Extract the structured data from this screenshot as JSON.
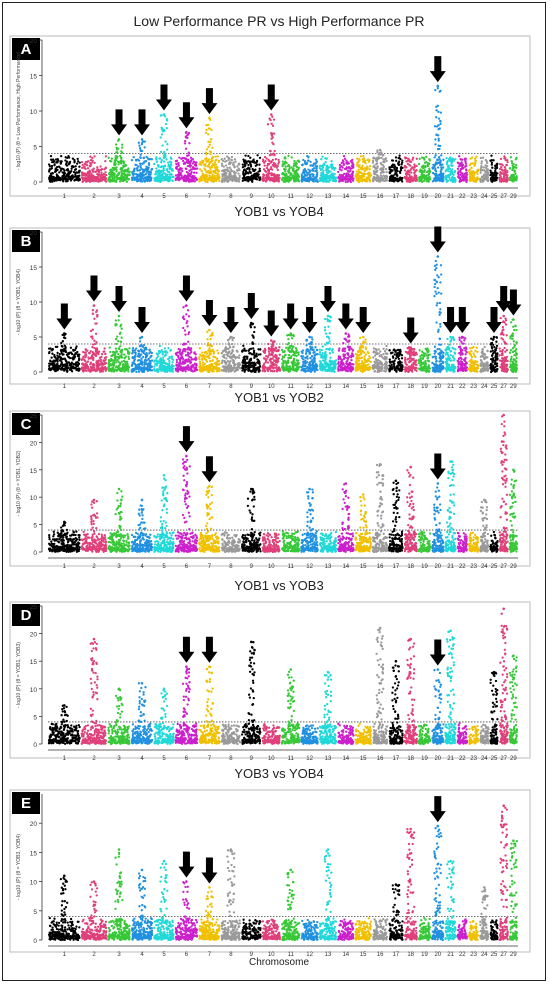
{
  "figure": {
    "x_axis_label": "Chromosome",
    "colors": [
      "#000000",
      "#e0407a",
      "#37c837",
      "#2090e0",
      "#20d8d8",
      "#cc20cc",
      "#f0c000",
      "#9a9a9a"
    ],
    "arrow_color": "#000000",
    "threshold_style": "dotted"
  },
  "chart_data": [
    {
      "type": "scatter",
      "subtype": "manhattan",
      "panel_letter": "A",
      "title": "Low Performance PR vs High Performance PR",
      "ylabel": "- log10 (P) (θ = Low Performance, High Performance)",
      "ylim": [
        0,
        20
      ],
      "yticks": [
        0,
        5,
        10,
        15,
        20
      ],
      "threshold": 4,
      "x_tick_labels": [
        "1",
        "2",
        "3",
        "4",
        "5",
        "6",
        "7",
        "8",
        "9",
        "10",
        "11",
        "12",
        "13",
        "14",
        "15",
        "16",
        "17",
        "18",
        "19",
        "20",
        "21",
        "22",
        "23",
        "24",
        "25",
        "27",
        "29"
      ],
      "peaks": [
        {
          "chromosome": "3",
          "value": 6
        },
        {
          "chromosome": "4",
          "value": 6
        },
        {
          "chromosome": "5",
          "value": 9.5
        },
        {
          "chromosome": "6",
          "value": 7
        },
        {
          "chromosome": "7",
          "value": 9
        },
        {
          "chromosome": "10",
          "value": 9.5
        },
        {
          "chromosome": "16",
          "value": 4.5
        },
        {
          "chromosome": "20",
          "value": 13.5
        }
      ],
      "arrows": [
        "3",
        "4",
        "5",
        "6",
        "7",
        "10",
        "20"
      ],
      "grid": false
    },
    {
      "type": "scatter",
      "subtype": "manhattan",
      "panel_letter": "B",
      "title": "YOB1 vs YOB4",
      "ylabel": "- log10 (P) (θ = YOB1, YOB4)",
      "ylim": [
        0,
        20
      ],
      "yticks": [
        0,
        5,
        10,
        15,
        20
      ],
      "threshold": 4,
      "x_tick_labels": [
        "1",
        "2",
        "3",
        "4",
        "5",
        "6",
        "7",
        "8",
        "9",
        "10",
        "11",
        "12",
        "13",
        "14",
        "15",
        "16",
        "17",
        "18",
        "19",
        "20",
        "21",
        "22",
        "23",
        "24",
        "25",
        "27",
        "29"
      ],
      "peaks": [
        {
          "chromosome": "1",
          "value": 5.5
        },
        {
          "chromosome": "2",
          "value": 9.5
        },
        {
          "chromosome": "3",
          "value": 8
        },
        {
          "chromosome": "4",
          "value": 5
        },
        {
          "chromosome": "6",
          "value": 9.5
        },
        {
          "chromosome": "7",
          "value": 6
        },
        {
          "chromosome": "8",
          "value": 5
        },
        {
          "chromosome": "9",
          "value": 7
        },
        {
          "chromosome": "10",
          "value": 4.5
        },
        {
          "chromosome": "11",
          "value": 5.5
        },
        {
          "chromosome": "12",
          "value": 5
        },
        {
          "chromosome": "13",
          "value": 8
        },
        {
          "chromosome": "14",
          "value": 5.5
        },
        {
          "chromosome": "15",
          "value": 5
        },
        {
          "chromosome": "18",
          "value": 3.5
        },
        {
          "chromosome": "20",
          "value": 16.5
        },
        {
          "chromosome": "21",
          "value": 5
        },
        {
          "chromosome": "22",
          "value": 5
        },
        {
          "chromosome": "25",
          "value": 5
        },
        {
          "chromosome": "27",
          "value": 8
        },
        {
          "chromosome": "29",
          "value": 7.5
        }
      ],
      "arrows": [
        "1",
        "2",
        "3",
        "4",
        "6",
        "7",
        "8",
        "9",
        "10",
        "11",
        "12",
        "13",
        "14",
        "15",
        "18",
        "20",
        "21",
        "22",
        "25",
        "27",
        "29"
      ],
      "grid": false
    },
    {
      "type": "scatter",
      "subtype": "manhattan",
      "panel_letter": "C",
      "title": "YOB1 vs YOB2",
      "ylabel": "- log10 (P) (θ = YOB1, YOB2)",
      "ylim": [
        0,
        25
      ],
      "yticks": [
        0,
        5,
        10,
        15,
        20,
        25
      ],
      "threshold": 4,
      "x_tick_labels": [
        "1",
        "2",
        "3",
        "4",
        "5",
        "6",
        "7",
        "8",
        "9",
        "10",
        "11",
        "12",
        "13",
        "14",
        "15",
        "16",
        "17",
        "18",
        "19",
        "20",
        "21",
        "22",
        "23",
        "24",
        "25",
        "27",
        "29"
      ],
      "peaks": [
        {
          "chromosome": "1",
          "value": 5.5
        },
        {
          "chromosome": "2",
          "value": 9.5
        },
        {
          "chromosome": "3",
          "value": 11.5
        },
        {
          "chromosome": "4",
          "value": 9.5
        },
        {
          "chromosome": "5",
          "value": 14
        },
        {
          "chromosome": "6",
          "value": 17.5
        },
        {
          "chromosome": "7",
          "value": 12
        },
        {
          "chromosome": "9",
          "value": 11.5
        },
        {
          "chromosome": "12",
          "value": 11.5
        },
        {
          "chromosome": "14",
          "value": 12.5
        },
        {
          "chromosome": "15",
          "value": 10.5
        },
        {
          "chromosome": "16",
          "value": 16
        },
        {
          "chromosome": "17",
          "value": 13
        },
        {
          "chromosome": "18",
          "value": 15.5
        },
        {
          "chromosome": "20",
          "value": 12.5
        },
        {
          "chromosome": "21",
          "value": 16.5
        },
        {
          "chromosome": "24",
          "value": 9.5
        },
        {
          "chromosome": "27",
          "value": 25
        },
        {
          "chromosome": "29",
          "value": 15
        }
      ],
      "arrows": [
        "6",
        "7",
        "20"
      ],
      "grid": false
    },
    {
      "type": "scatter",
      "subtype": "manhattan",
      "panel_letter": "D",
      "title": "YOB1 vs YOB3",
      "ylabel": "- log10 (P) (θ = YOB1, YOB3)",
      "ylim": [
        0,
        25
      ],
      "yticks": [
        0,
        5,
        10,
        15,
        20,
        25
      ],
      "threshold": 4,
      "x_tick_labels": [
        "1",
        "2",
        "3",
        "4",
        "5",
        "6",
        "7",
        "8",
        "9",
        "10",
        "11",
        "12",
        "13",
        "14",
        "15",
        "16",
        "17",
        "18",
        "19",
        "20",
        "21",
        "22",
        "23",
        "24",
        "25",
        "27",
        "29"
      ],
      "peaks": [
        {
          "chromosome": "1",
          "value": 7
        },
        {
          "chromosome": "2",
          "value": 19
        },
        {
          "chromosome": "3",
          "value": 10
        },
        {
          "chromosome": "4",
          "value": 11
        },
        {
          "chromosome": "5",
          "value": 10
        },
        {
          "chromosome": "6",
          "value": 14
        },
        {
          "chromosome": "7",
          "value": 14
        },
        {
          "chromosome": "9",
          "value": 18.5
        },
        {
          "chromosome": "11",
          "value": 13.5
        },
        {
          "chromosome": "13",
          "value": 13
        },
        {
          "chromosome": "16",
          "value": 21
        },
        {
          "chromosome": "17",
          "value": 15
        },
        {
          "chromosome": "18",
          "value": 19
        },
        {
          "chromosome": "20",
          "value": 13.5
        },
        {
          "chromosome": "21",
          "value": 20.5
        },
        {
          "chromosome": "25",
          "value": 13
        },
        {
          "chromosome": "27",
          "value": 24.5
        },
        {
          "chromosome": "29",
          "value": 16
        }
      ],
      "arrows": [
        "6",
        "7",
        "20"
      ],
      "grid": false
    },
    {
      "type": "scatter",
      "subtype": "manhattan",
      "panel_letter": "E",
      "title": "YOB3 vs YOB4",
      "ylabel": "- log10 (P) (θ = YOB3, YOB4)",
      "xlabel": "Chromosome",
      "ylim": [
        0,
        25
      ],
      "yticks": [
        0,
        5,
        10,
        15,
        20
      ],
      "threshold": 4,
      "x_tick_labels": [
        "1",
        "2",
        "3",
        "4",
        "5",
        "6",
        "7",
        "8",
        "9",
        "10",
        "11",
        "12",
        "13",
        "14",
        "15",
        "16",
        "17",
        "18",
        "19",
        "20",
        "21",
        "22",
        "23",
        "24",
        "25",
        "27",
        "29"
      ],
      "peaks": [
        {
          "chromosome": "1",
          "value": 11
        },
        {
          "chromosome": "2",
          "value": 10
        },
        {
          "chromosome": "3",
          "value": 15.5
        },
        {
          "chromosome": "4",
          "value": 12
        },
        {
          "chromosome": "5",
          "value": 13.5
        },
        {
          "chromosome": "6",
          "value": 10
        },
        {
          "chromosome": "7",
          "value": 9
        },
        {
          "chromosome": "8",
          "value": 15.5
        },
        {
          "chromosome": "11",
          "value": 12
        },
        {
          "chromosome": "13",
          "value": 15.5
        },
        {
          "chromosome": "17",
          "value": 9.5
        },
        {
          "chromosome": "18",
          "value": 19
        },
        {
          "chromosome": "20",
          "value": 19.5
        },
        {
          "chromosome": "21",
          "value": 13.5
        },
        {
          "chromosome": "24",
          "value": 9
        },
        {
          "chromosome": "27",
          "value": 23
        },
        {
          "chromosome": "29",
          "value": 17
        }
      ],
      "arrows": [
        "6",
        "7",
        "20"
      ],
      "grid": false
    }
  ]
}
